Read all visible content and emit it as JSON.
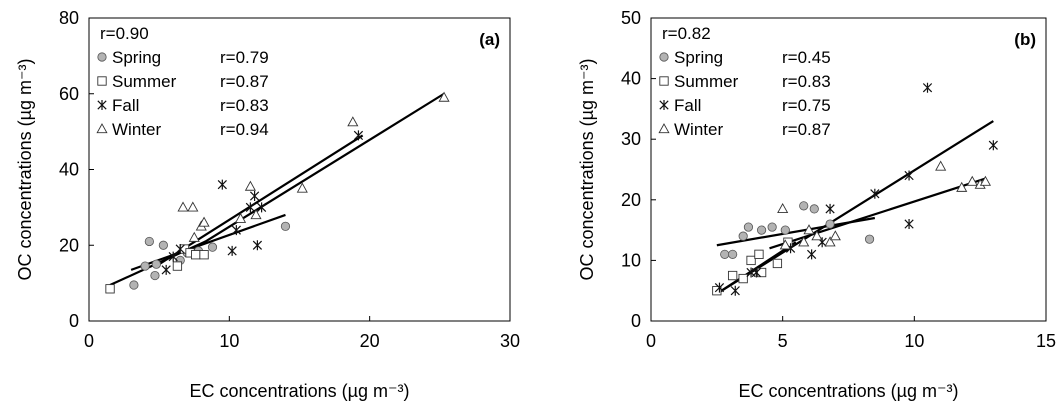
{
  "chart_data": [
    {
      "type": "scatter",
      "panel_label": "(a)",
      "overall_r": "r=0.90",
      "xlabel": "EC concentrations (µg m⁻³)",
      "ylabel": "OC concentrations (µg m⁻³)",
      "xlim": [
        0,
        30
      ],
      "ylim": [
        0,
        80
      ],
      "xticks": [
        "0",
        "10",
        "20",
        "30"
      ],
      "yticks": [
        "0",
        "20",
        "40",
        "60",
        "80"
      ],
      "grid": false,
      "legend_position": "top-left",
      "series": [
        {
          "name": "Spring",
          "r": "r=0.79",
          "marker": "circle",
          "points": [
            [
              3.2,
              9.5
            ],
            [
              4.0,
              14.5
            ],
            [
              4.3,
              21
            ],
            [
              4.7,
              12
            ],
            [
              4.8,
              15
            ],
            [
              5.3,
              20
            ],
            [
              6.5,
              16
            ],
            [
              7.0,
              18
            ],
            [
              7.8,
              18.5
            ],
            [
              8.8,
              19.5
            ],
            [
              14.0,
              25
            ]
          ],
          "fit": [
            [
              3.0,
              13.5
            ],
            [
              14.0,
              28
            ]
          ]
        },
        {
          "name": "Summer",
          "r": "r=0.87",
          "marker": "square",
          "points": [
            [
              1.5,
              8.5
            ],
            [
              6.3,
              14.5
            ],
            [
              6.8,
              19
            ],
            [
              7.2,
              18
            ],
            [
              7.6,
              17.5
            ],
            [
              8.2,
              17.5
            ]
          ],
          "fit": [
            [
              1.5,
              9.5
            ],
            [
              8.3,
              21
            ]
          ]
        },
        {
          "name": "Fall",
          "r": "r=0.83",
          "marker": "asterisk",
          "points": [
            [
              5.5,
              13.5
            ],
            [
              6.0,
              17
            ],
            [
              6.5,
              19
            ],
            [
              9.5,
              36
            ],
            [
              10.2,
              18.5
            ],
            [
              10.5,
              24
            ],
            [
              11.5,
              30
            ],
            [
              11.8,
              33
            ],
            [
              12.0,
              20
            ],
            [
              12.3,
              30
            ],
            [
              19.2,
              49
            ]
          ],
          "fit": [
            [
              5.0,
              15
            ],
            [
              19.5,
              49
            ]
          ]
        },
        {
          "name": "Winter",
          "r": "r=0.94",
          "marker": "triangle",
          "points": [
            [
              6.7,
              30
            ],
            [
              7.4,
              30
            ],
            [
              7.5,
              22
            ],
            [
              8.0,
              25
            ],
            [
              8.2,
              26
            ],
            [
              10.8,
              27
            ],
            [
              11.5,
              35.5
            ],
            [
              11.9,
              28
            ],
            [
              15.2,
              35
            ],
            [
              18.8,
              52.5
            ],
            [
              25.3,
              59
            ]
          ],
          "fit": [
            [
              7.0,
              18
            ],
            [
              25.3,
              60
            ]
          ]
        }
      ]
    },
    {
      "type": "scatter",
      "panel_label": "(b)",
      "overall_r": "r=0.82",
      "xlabel": "EC concentrations (µg m⁻³)",
      "ylabel": "OC concentrations (µg m⁻³)",
      "xlim": [
        0,
        15
      ],
      "ylim": [
        0,
        50
      ],
      "xticks": [
        "0",
        "5",
        "10",
        "15"
      ],
      "yticks": [
        "0",
        "10",
        "20",
        "30",
        "40",
        "50"
      ],
      "grid": false,
      "legend_position": "top-left",
      "series": [
        {
          "name": "Spring",
          "r": "r=0.45",
          "marker": "circle",
          "points": [
            [
              2.8,
              11
            ],
            [
              3.1,
              11
            ],
            [
              3.5,
              14
            ],
            [
              3.7,
              15.5
            ],
            [
              4.2,
              15
            ],
            [
              4.6,
              15.5
            ],
            [
              5.1,
              15
            ],
            [
              5.8,
              19
            ],
            [
              6.2,
              18.5
            ],
            [
              6.8,
              16
            ],
            [
              8.3,
              13.5
            ]
          ],
          "fit": [
            [
              2.5,
              12.5
            ],
            [
              8.5,
              17
            ]
          ]
        },
        {
          "name": "Summer",
          "r": "r=0.83",
          "marker": "square",
          "points": [
            [
              2.5,
              5
            ],
            [
              3.1,
              7.5
            ],
            [
              3.5,
              7
            ],
            [
              3.8,
              10
            ],
            [
              4.1,
              11
            ],
            [
              4.2,
              8
            ],
            [
              4.8,
              9.5
            ],
            [
              5.2,
              13
            ]
          ],
          "fit": [
            [
              2.5,
              4.5
            ],
            [
              5.5,
              13
            ]
          ]
        },
        {
          "name": "Fall",
          "r": "r=0.75",
          "marker": "asterisk",
          "points": [
            [
              2.6,
              5.5
            ],
            [
              3.2,
              5
            ],
            [
              3.8,
              8
            ],
            [
              4.0,
              8
            ],
            [
              5.3,
              12
            ],
            [
              6.1,
              11
            ],
            [
              6.5,
              13
            ],
            [
              6.8,
              18.5
            ],
            [
              8.5,
              21
            ],
            [
              9.8,
              16
            ],
            [
              9.8,
              24
            ],
            [
              10.5,
              38.5
            ],
            [
              13.0,
              29
            ]
          ],
          "fit": [
            [
              2.5,
              4.5
            ],
            [
              13.0,
              33
            ]
          ]
        },
        {
          "name": "Winter",
          "r": "r=0.87",
          "marker": "triangle",
          "points": [
            [
              5.0,
              18.5
            ],
            [
              5.1,
              12.5
            ],
            [
              5.8,
              13
            ],
            [
              6.0,
              15
            ],
            [
              6.3,
              14
            ],
            [
              6.8,
              13
            ],
            [
              7.0,
              14
            ],
            [
              11.0,
              25.5
            ],
            [
              11.8,
              22
            ],
            [
              12.2,
              23
            ],
            [
              12.5,
              22.5
            ],
            [
              12.7,
              23
            ]
          ],
          "fit": [
            [
              4.5,
              12
            ],
            [
              12.7,
              23.5
            ]
          ]
        }
      ]
    }
  ]
}
